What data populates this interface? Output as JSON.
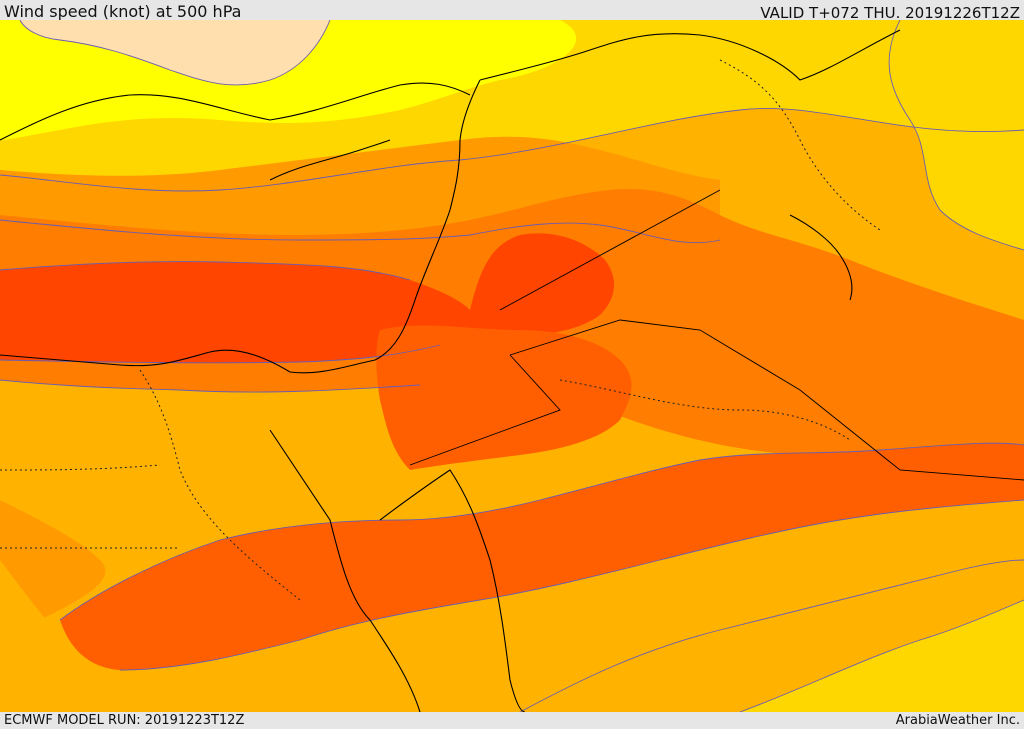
{
  "header": {
    "title": "Wind speed (knot) at 500 hPa",
    "valid": "VALID T+072 THU. 20191226T12Z"
  },
  "footer": {
    "model_run": "ECMWF MODEL RUN: 20191223T12Z",
    "credit": "ArabiaWeather Inc."
  },
  "colors": {
    "band_1": "#ffdfae",
    "band_2": "#ffff00",
    "band_3": "#ffd700",
    "band_4": "#ffb300",
    "band_5": "#ff9a00",
    "band_6": "#ff7d00",
    "band_7": "#ff5f00",
    "band_8": "#ff4500",
    "contour": "#6b5db0",
    "coast": "#000000"
  }
}
